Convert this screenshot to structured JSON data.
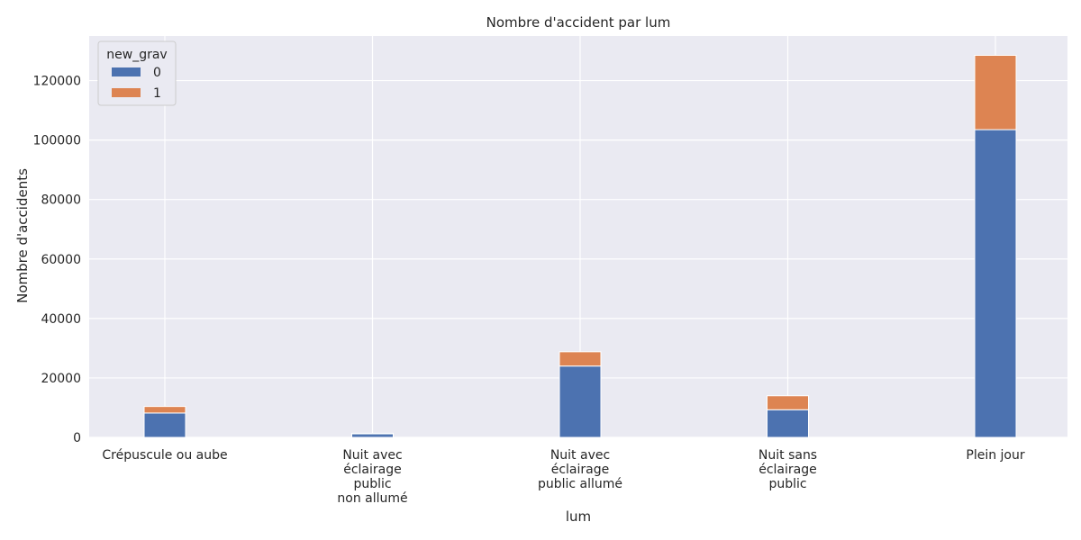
{
  "chart_data": {
    "type": "bar",
    "stacked": true,
    "title": "Nombre d'accident par lum",
    "xlabel": "lum",
    "ylabel": "Nombre d'accidents",
    "ylim": [
      0,
      135000
    ],
    "yticks": [
      0,
      20000,
      40000,
      60000,
      80000,
      100000,
      120000
    ],
    "grid": true,
    "categories": [
      "Crépuscule ou aube",
      "Nuit avec\néclairage\npublic\nnon allumé",
      "Nuit avec\néclairage\npublic allumé",
      "Nuit sans\néclairage\npublic",
      "Plein jour"
    ],
    "legend": {
      "title": "new_grav",
      "position": "top-left"
    },
    "series": [
      {
        "name": "0",
        "color": "#4c72b0",
        "values": [
          8200,
          1200,
          24000,
          9300,
          103500
        ]
      },
      {
        "name": "1",
        "color": "#dd8452",
        "values": [
          2200,
          200,
          4800,
          4700,
          25000
        ]
      }
    ]
  }
}
